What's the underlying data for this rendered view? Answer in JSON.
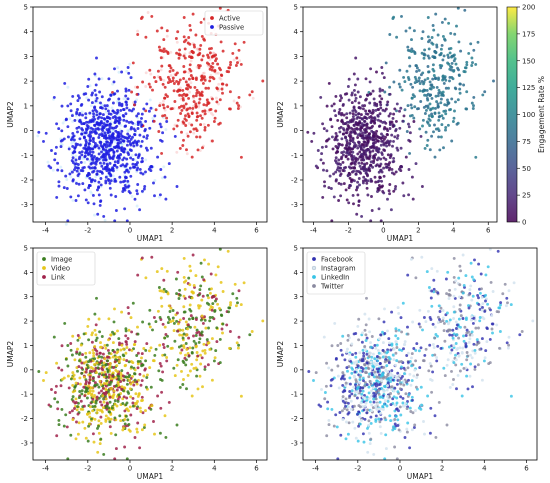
{
  "chart_data": [
    {
      "type": "scatter",
      "panel": "top-left",
      "xlabel": "UMAP1",
      "ylabel": "UMAP2",
      "xlim": [
        -4.6,
        6.5
      ],
      "ylim": [
        -3.7,
        5.0
      ],
      "xticks": [
        -4,
        -2,
        0,
        2,
        4,
        6
      ],
      "yticks": [
        -3,
        -2,
        -1,
        0,
        1,
        2,
        3,
        4,
        5
      ],
      "legend": "top-right",
      "color_by": "category",
      "series": [
        {
          "name": "Active",
          "color": "#d62728",
          "center": [
            3.0,
            2.0
          ],
          "spread": [
            1.1,
            1.2
          ],
          "count": 330
        },
        {
          "name": "Passive",
          "color": "#1f1fe0",
          "center": [
            -1.0,
            -0.5
          ],
          "spread": [
            1.1,
            1.1
          ],
          "count": 720
        }
      ]
    },
    {
      "type": "scatter",
      "panel": "top-right",
      "xlabel": "UMAP1",
      "ylabel": "UMAP2",
      "xlim": [
        -4.6,
        6.5
      ],
      "ylim": [
        -3.7,
        5.0
      ],
      "xticks": [
        -4,
        -2,
        0,
        2,
        4,
        6
      ],
      "yticks": [
        -3,
        -2,
        -1,
        0,
        1,
        2,
        3,
        4,
        5
      ],
      "color_by": "Engagement Rate %",
      "colormap": "viridis",
      "colorbar": {
        "label": "Engagement Rate %",
        "range": [
          0,
          200
        ],
        "ticks": [
          0,
          25,
          50,
          75,
          100,
          125,
          150,
          175,
          200
        ]
      },
      "clusters": [
        {
          "center": [
            3.0,
            2.0
          ],
          "spread": [
            1.1,
            1.2
          ],
          "count": 330,
          "value": 87
        },
        {
          "center": [
            -1.0,
            -0.5
          ],
          "spread": [
            1.1,
            1.1
          ],
          "count": 720,
          "value": 14
        }
      ]
    },
    {
      "type": "scatter",
      "panel": "bottom-left",
      "xlabel": "UMAP1",
      "ylabel": "UMAP2",
      "xlim": [
        -4.6,
        6.5
      ],
      "ylim": [
        -3.7,
        5.0
      ],
      "xticks": [
        -4,
        -2,
        0,
        2,
        4,
        6
      ],
      "yticks": [
        -3,
        -2,
        -1,
        0,
        1,
        2,
        3,
        4,
        5
      ],
      "legend": "top-left",
      "color_by": "category",
      "series": [
        {
          "name": "Image",
          "color": "#3a7d1f"
        },
        {
          "name": "Video",
          "color": "#e6c619"
        },
        {
          "name": "Link",
          "color": "#a0224a"
        }
      ]
    },
    {
      "type": "scatter",
      "panel": "bottom-right",
      "xlabel": "UMAP1",
      "ylabel": "UMAP2",
      "xlim": [
        -4.6,
        6.5
      ],
      "ylim": [
        -3.7,
        5.0
      ],
      "xticks": [
        -4,
        -2,
        0,
        2,
        4,
        6
      ],
      "yticks": [
        -3,
        -2,
        -1,
        0,
        1,
        2,
        3,
        4,
        5
      ],
      "legend": "top-left",
      "color_by": "category",
      "series": [
        {
          "name": "Facebook",
          "color": "#3030b0"
        },
        {
          "name": "Instagram",
          "color": "#d8e6f0"
        },
        {
          "name": "LinkedIn",
          "color": "#36c3e6"
        },
        {
          "name": "Twitter",
          "color": "#8a8aa0"
        }
      ]
    }
  ]
}
